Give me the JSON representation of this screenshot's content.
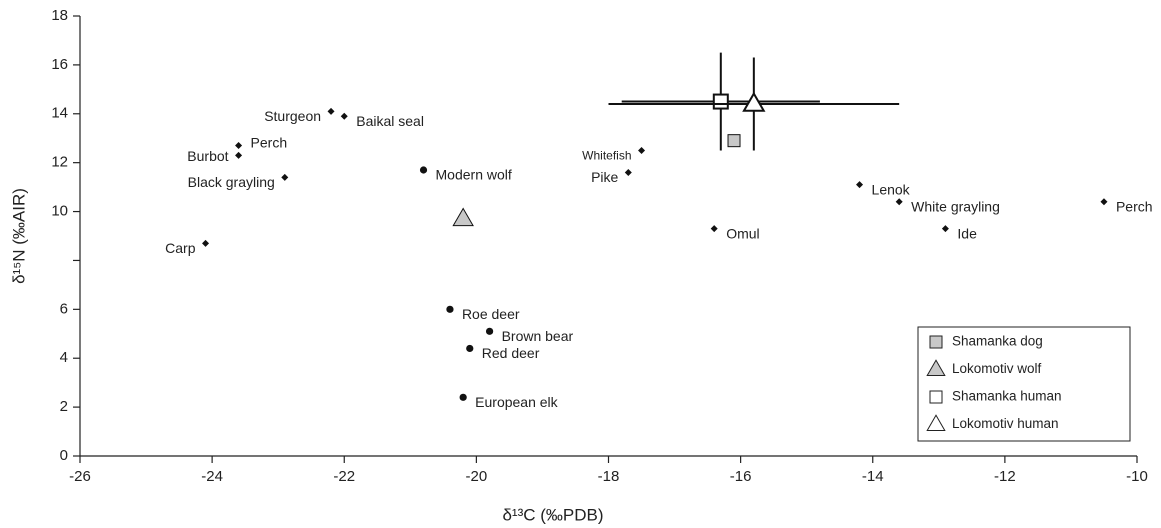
{
  "chart_data": {
    "type": "scatter",
    "xlabel": "δ¹³C (‰PDB)",
    "ylabel": "δ¹⁵N (‰AIR)",
    "xlim": [
      -26,
      -10
    ],
    "ylim": [
      0,
      18
    ],
    "xticks": [
      -26,
      -24,
      -22,
      -20,
      -18,
      -16,
      -14,
      -12,
      -10
    ],
    "yticks": [
      0,
      2,
      4,
      6,
      {
        "value": 8,
        "label": null
      },
      10,
      12,
      14,
      16,
      18
    ],
    "points": {
      "labels": [
        "Sturgeon",
        "Baikal seal",
        "Burbot",
        "Perch",
        "Black grayling",
        "Carp",
        "Whitefish",
        "Pike",
        "Omul",
        "Lenok",
        "White grayling",
        "Ide",
        "Perch",
        "Modern wolf",
        "Roe deer",
        "Brown bear",
        "Red deer",
        "European elk"
      ],
      "x": [
        -22.2,
        -22.0,
        -23.6,
        -23.6,
        -22.9,
        -24.1,
        -17.5,
        -17.7,
        -16.4,
        -14.2,
        -13.6,
        -12.9,
        -10.5,
        -20.8,
        -20.4,
        -19.8,
        -20.1,
        -20.2
      ],
      "y": [
        14.1,
        13.9,
        12.3,
        12.7,
        11.4,
        8.7,
        12.5,
        11.6,
        9.3,
        11.1,
        10.4,
        9.3,
        10.4,
        11.7,
        6.0,
        5.1,
        4.4,
        2.4
      ],
      "markers": [
        "diamond",
        "diamond",
        "diamond",
        "diamond",
        "diamond",
        "diamond",
        "diamond",
        "diamond",
        "diamond",
        "diamond",
        "diamond",
        "diamond",
        "diamond",
        "circle",
        "circle",
        "circle",
        "circle",
        "circle"
      ],
      "color": "#111111"
    },
    "series": [
      {
        "name": "Shamanka dog",
        "marker": "square",
        "color": "#c8c8c8",
        "x": -16.1,
        "y": 12.9
      },
      {
        "name": "Lokomotiv wolf",
        "marker": "triangle",
        "color": "#c8c8c8",
        "x": -20.2,
        "y": 9.7
      },
      {
        "name": "Shamanka human",
        "marker": "square",
        "color": "#ffffff",
        "x": -16.3,
        "y": 14.5,
        "xerr": 1.5,
        "yerr": 2.0
      },
      {
        "name": "Lokomotiv human",
        "marker": "triangle",
        "color": "#ffffff",
        "x": -15.8,
        "y": 14.4,
        "xerr": 2.2,
        "yerr": 1.9
      }
    ],
    "legend": "lower right"
  }
}
